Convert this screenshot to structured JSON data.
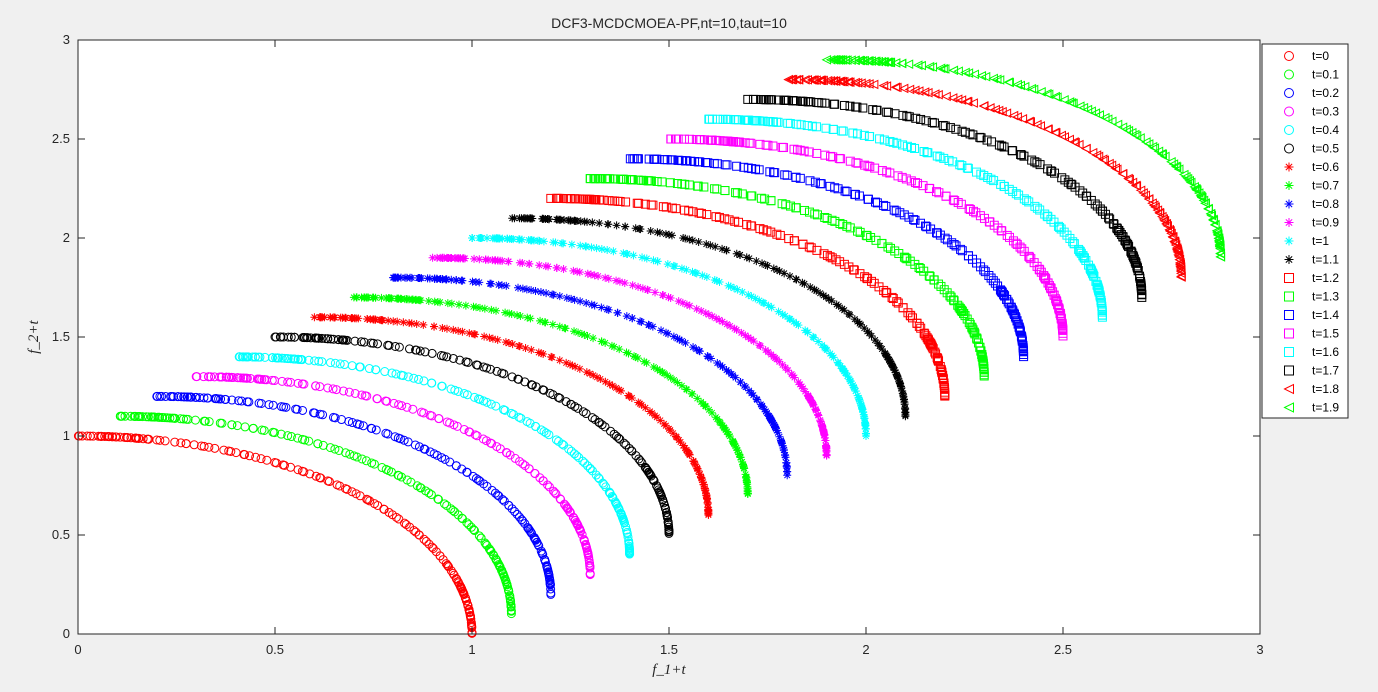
{
  "chart_data": {
    "type": "scatter",
    "title": "DCF3-MCDCMOEA-PF,nt=10,taut=10",
    "xlabel": "f_1+t",
    "ylabel": "f_2+t",
    "xlim": [
      0,
      3
    ],
    "ylim": [
      0,
      3
    ],
    "x_ticks": [
      "0",
      "0.5",
      "1",
      "1.5",
      "2",
      "2.5",
      "3"
    ],
    "y_ticks": [
      "0",
      "0.5",
      "1",
      "1.5",
      "2",
      "2.5",
      "3"
    ],
    "grid": false,
    "legend_position": "outside-top-right",
    "front_shape": "quarter-circle arc of radius 1 from (t, 1+t) to (1+t, t); each series is the Pareto front shifted by t",
    "series": [
      {
        "name": "t=0",
        "t": 0,
        "marker": "circle",
        "color": "#ff0000"
      },
      {
        "name": "t=0.1",
        "t": 0.1,
        "marker": "circle",
        "color": "#00ff00"
      },
      {
        "name": "t=0.2",
        "t": 0.2,
        "marker": "circle",
        "color": "#0000ff"
      },
      {
        "name": "t=0.3",
        "t": 0.3,
        "marker": "circle",
        "color": "#ff00ff"
      },
      {
        "name": "t=0.4",
        "t": 0.4,
        "marker": "circle",
        "color": "#00ffff"
      },
      {
        "name": "t=0.5",
        "t": 0.5,
        "marker": "circle",
        "color": "#000000"
      },
      {
        "name": "t=0.6",
        "t": 0.6,
        "marker": "asterisk",
        "color": "#ff0000"
      },
      {
        "name": "t=0.7",
        "t": 0.7,
        "marker": "asterisk",
        "color": "#00ff00"
      },
      {
        "name": "t=0.8",
        "t": 0.8,
        "marker": "asterisk",
        "color": "#0000ff"
      },
      {
        "name": "t=0.9",
        "t": 0.9,
        "marker": "asterisk",
        "color": "#ff00ff"
      },
      {
        "name": "t=1",
        "t": 1.0,
        "marker": "asterisk",
        "color": "#00ffff"
      },
      {
        "name": "t=1.1",
        "t": 1.1,
        "marker": "asterisk",
        "color": "#000000"
      },
      {
        "name": "t=1.2",
        "t": 1.2,
        "marker": "square",
        "color": "#ff0000"
      },
      {
        "name": "t=1.3",
        "t": 1.3,
        "marker": "square",
        "color": "#00ff00"
      },
      {
        "name": "t=1.4",
        "t": 1.4,
        "marker": "square",
        "color": "#0000ff"
      },
      {
        "name": "t=1.5",
        "t": 1.5,
        "marker": "square",
        "color": "#ff00ff"
      },
      {
        "name": "t=1.6",
        "t": 1.6,
        "marker": "square",
        "color": "#00ffff"
      },
      {
        "name": "t=1.7",
        "t": 1.7,
        "marker": "square",
        "color": "#000000"
      },
      {
        "name": "t=1.8",
        "t": 1.8,
        "marker": "triangle-left",
        "color": "#ff0000"
      },
      {
        "name": "t=1.9",
        "t": 1.9,
        "marker": "triangle-left",
        "color": "#00ff00"
      }
    ]
  }
}
